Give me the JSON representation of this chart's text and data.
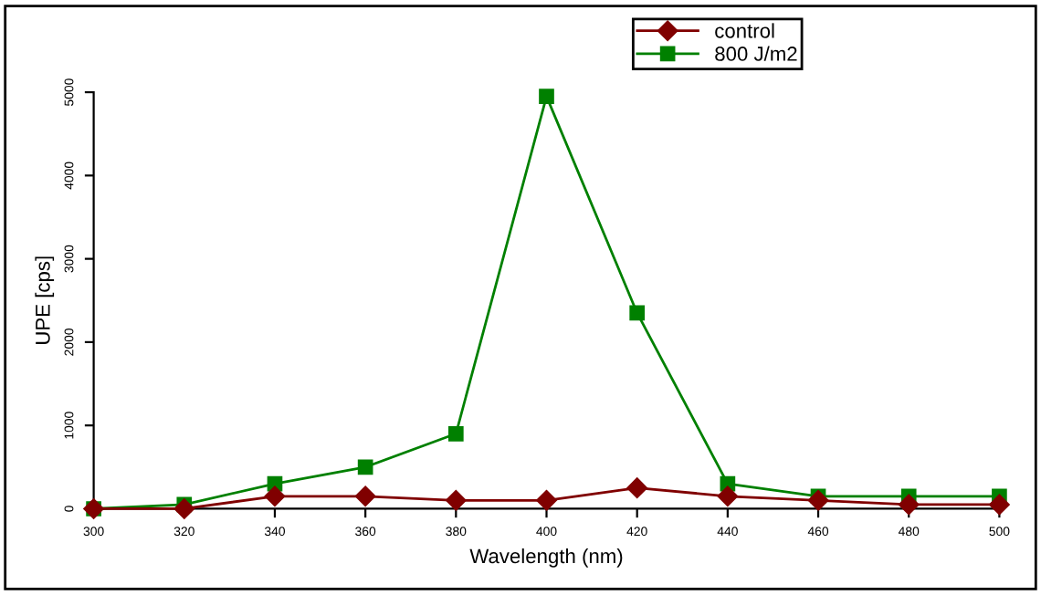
{
  "chart_data": {
    "type": "line",
    "xlabel": "Wavelength (nm)",
    "ylabel": "UPE [cps]",
    "x": [
      300,
      320,
      340,
      360,
      380,
      400,
      420,
      440,
      460,
      480,
      500
    ],
    "series": [
      {
        "name": "control",
        "color": "#800000",
        "marker": "diamond",
        "values": [
          0,
          0,
          150,
          150,
          100,
          100,
          250,
          150,
          100,
          50,
          50
        ]
      },
      {
        "name": "800 J/m2",
        "color": "#008000",
        "marker": "square",
        "values": [
          0,
          50,
          300,
          500,
          900,
          4950,
          2350,
          300,
          150,
          150,
          150
        ]
      }
    ],
    "xlim": [
      300,
      500
    ],
    "xticks": [
      300,
      320,
      340,
      360,
      380,
      400,
      420,
      440,
      460,
      480,
      500
    ],
    "ylim": [
      0,
      5000
    ],
    "yticks": [
      0,
      1000,
      2000,
      3000,
      4000,
      5000
    ],
    "grid": false,
    "legend": "top right",
    "line_style": "solid"
  }
}
